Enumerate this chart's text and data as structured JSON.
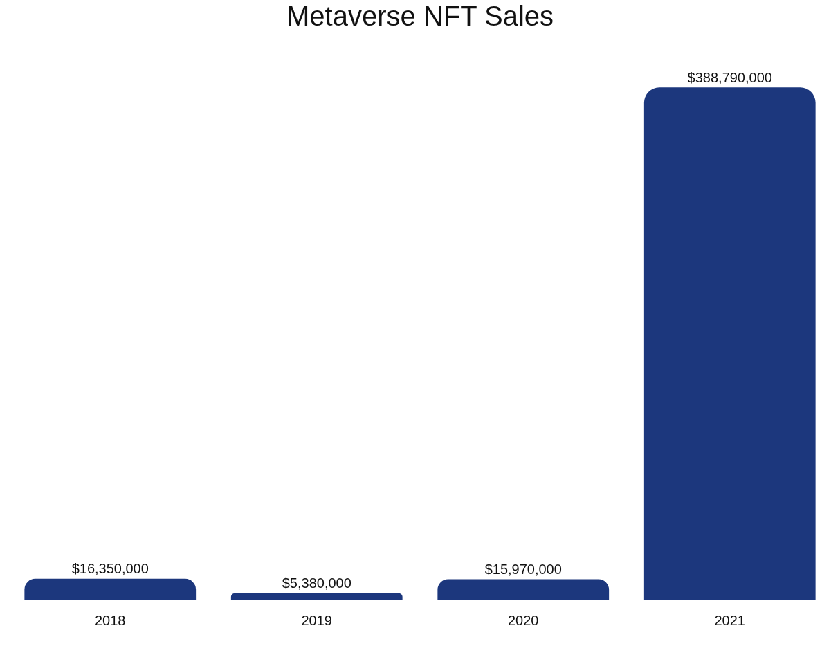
{
  "chart_data": {
    "type": "bar",
    "title": "Metaverse NFT Sales",
    "categories": [
      "2018",
      "2019",
      "2020",
      "2021"
    ],
    "values": [
      16350000,
      5380000,
      15970000,
      388790000
    ],
    "value_labels": [
      "$16,350,000",
      "$5,380,000",
      "$15,970,000",
      "$388,790,000"
    ],
    "color": "#1c377d"
  }
}
